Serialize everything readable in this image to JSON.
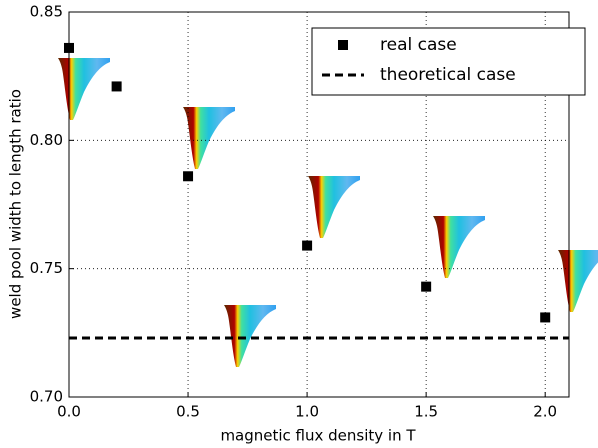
{
  "chart_data": {
    "type": "scatter",
    "xlabel": "magnetic flux density in T",
    "ylabel": "weld pool width to length ratio",
    "xlim": [
      0,
      2.1
    ],
    "ylim": [
      0.7,
      0.85
    ],
    "xticks": [
      {
        "value": 0,
        "label": "0.0"
      },
      0.5,
      {
        "value": 1,
        "label": "1.0"
      },
      1.5,
      {
        "value": 2,
        "label": "2.0"
      }
    ],
    "yticks": [
      {
        "value": 0.7,
        "label": "0.70"
      },
      0.75,
      {
        "value": 0.8,
        "label": "0.80"
      },
      0.85
    ],
    "grid": true,
    "legend": "upper right",
    "series": [
      {
        "name": "real case",
        "color": "#000000",
        "x": [
          0,
          0.2,
          0.5,
          1.0,
          1.5,
          2.0
        ],
        "values": [
          0.836,
          0.821,
          0.786,
          0.759,
          0.743,
          0.731
        ]
      },
      {
        "name": "theoretical case",
        "color": "#000000",
        "kind": "hline",
        "values": [
          0.723
        ]
      }
    ]
  }
}
